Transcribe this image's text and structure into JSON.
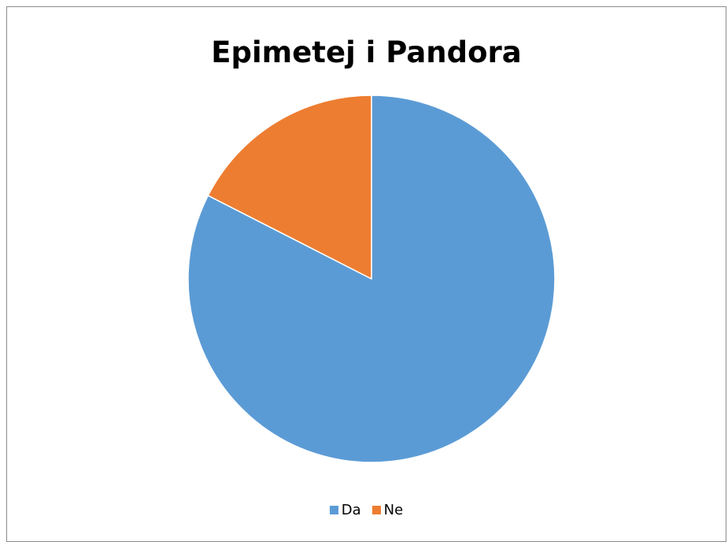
{
  "chart_data": {
    "type": "pie",
    "title": "Epimetej i Pandora",
    "categories": [
      "Da",
      "Ne"
    ],
    "values": [
      82.5,
      17.5
    ],
    "colors": [
      "#5b9bd5",
      "#ed7d31"
    ],
    "start_angle_deg": 0,
    "direction": "clockwise",
    "legend_position": "bottom"
  }
}
